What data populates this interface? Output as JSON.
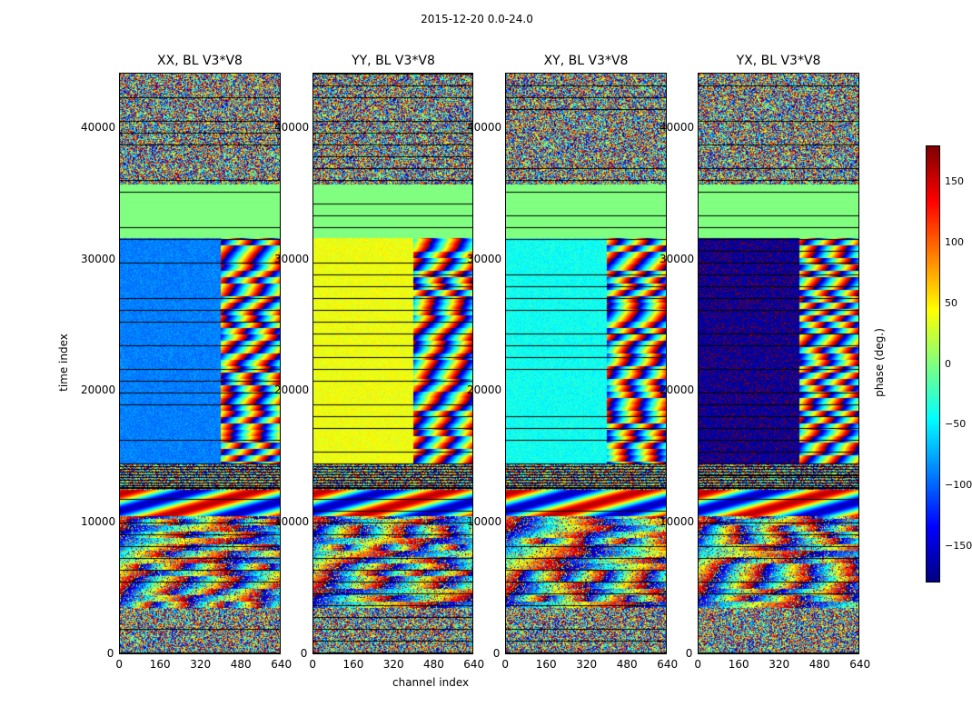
{
  "suptitle": "2015-12-20 0.0-24.0",
  "chart_data": {
    "type": "heatmap",
    "panels": [
      {
        "title": "XX, BL V3*V8"
      },
      {
        "title": "YY, BL V3*V8"
      },
      {
        "title": "XY, BL V3*V8"
      },
      {
        "title": "YX, BL V3*V8"
      }
    ],
    "xlabel": "channel index",
    "ylabel": "time index",
    "x_ticks": [
      "0",
      "160",
      "320",
      "480",
      "640"
    ],
    "y_ticks": [
      "0",
      "10000",
      "20000",
      "30000",
      "40000"
    ],
    "xlim": [
      0,
      640
    ],
    "ylim": [
      0,
      44200
    ],
    "colorbar": {
      "label": "phase (deg.)",
      "ticks": [
        "150",
        "100",
        "50",
        "0",
        "−50",
        "−100",
        "−150"
      ],
      "tick_values": [
        150,
        100,
        50,
        0,
        -50,
        -100,
        -150
      ],
      "range": [
        -180,
        180
      ],
      "colormap": "jet"
    },
    "row_segments": [
      {
        "t_start": 0,
        "t_end": 3500,
        "pattern": "noise"
      },
      {
        "t_start": 3500,
        "t_end": 10500,
        "pattern": "fringe"
      },
      {
        "t_start": 10500,
        "t_end": 12500,
        "pattern": "sweep"
      },
      {
        "t_start": 12500,
        "t_end": 14500,
        "pattern": "dark"
      },
      {
        "t_start": 14500,
        "t_end": 31700,
        "pattern": "flat"
      },
      {
        "t_start": 31700,
        "t_end": 35800,
        "pattern": "zero"
      },
      {
        "t_start": 35800,
        "t_end": 44200,
        "pattern": "noise"
      }
    ],
    "flat_phase_by_panel": [
      -90,
      40,
      -40,
      -170
    ]
  }
}
